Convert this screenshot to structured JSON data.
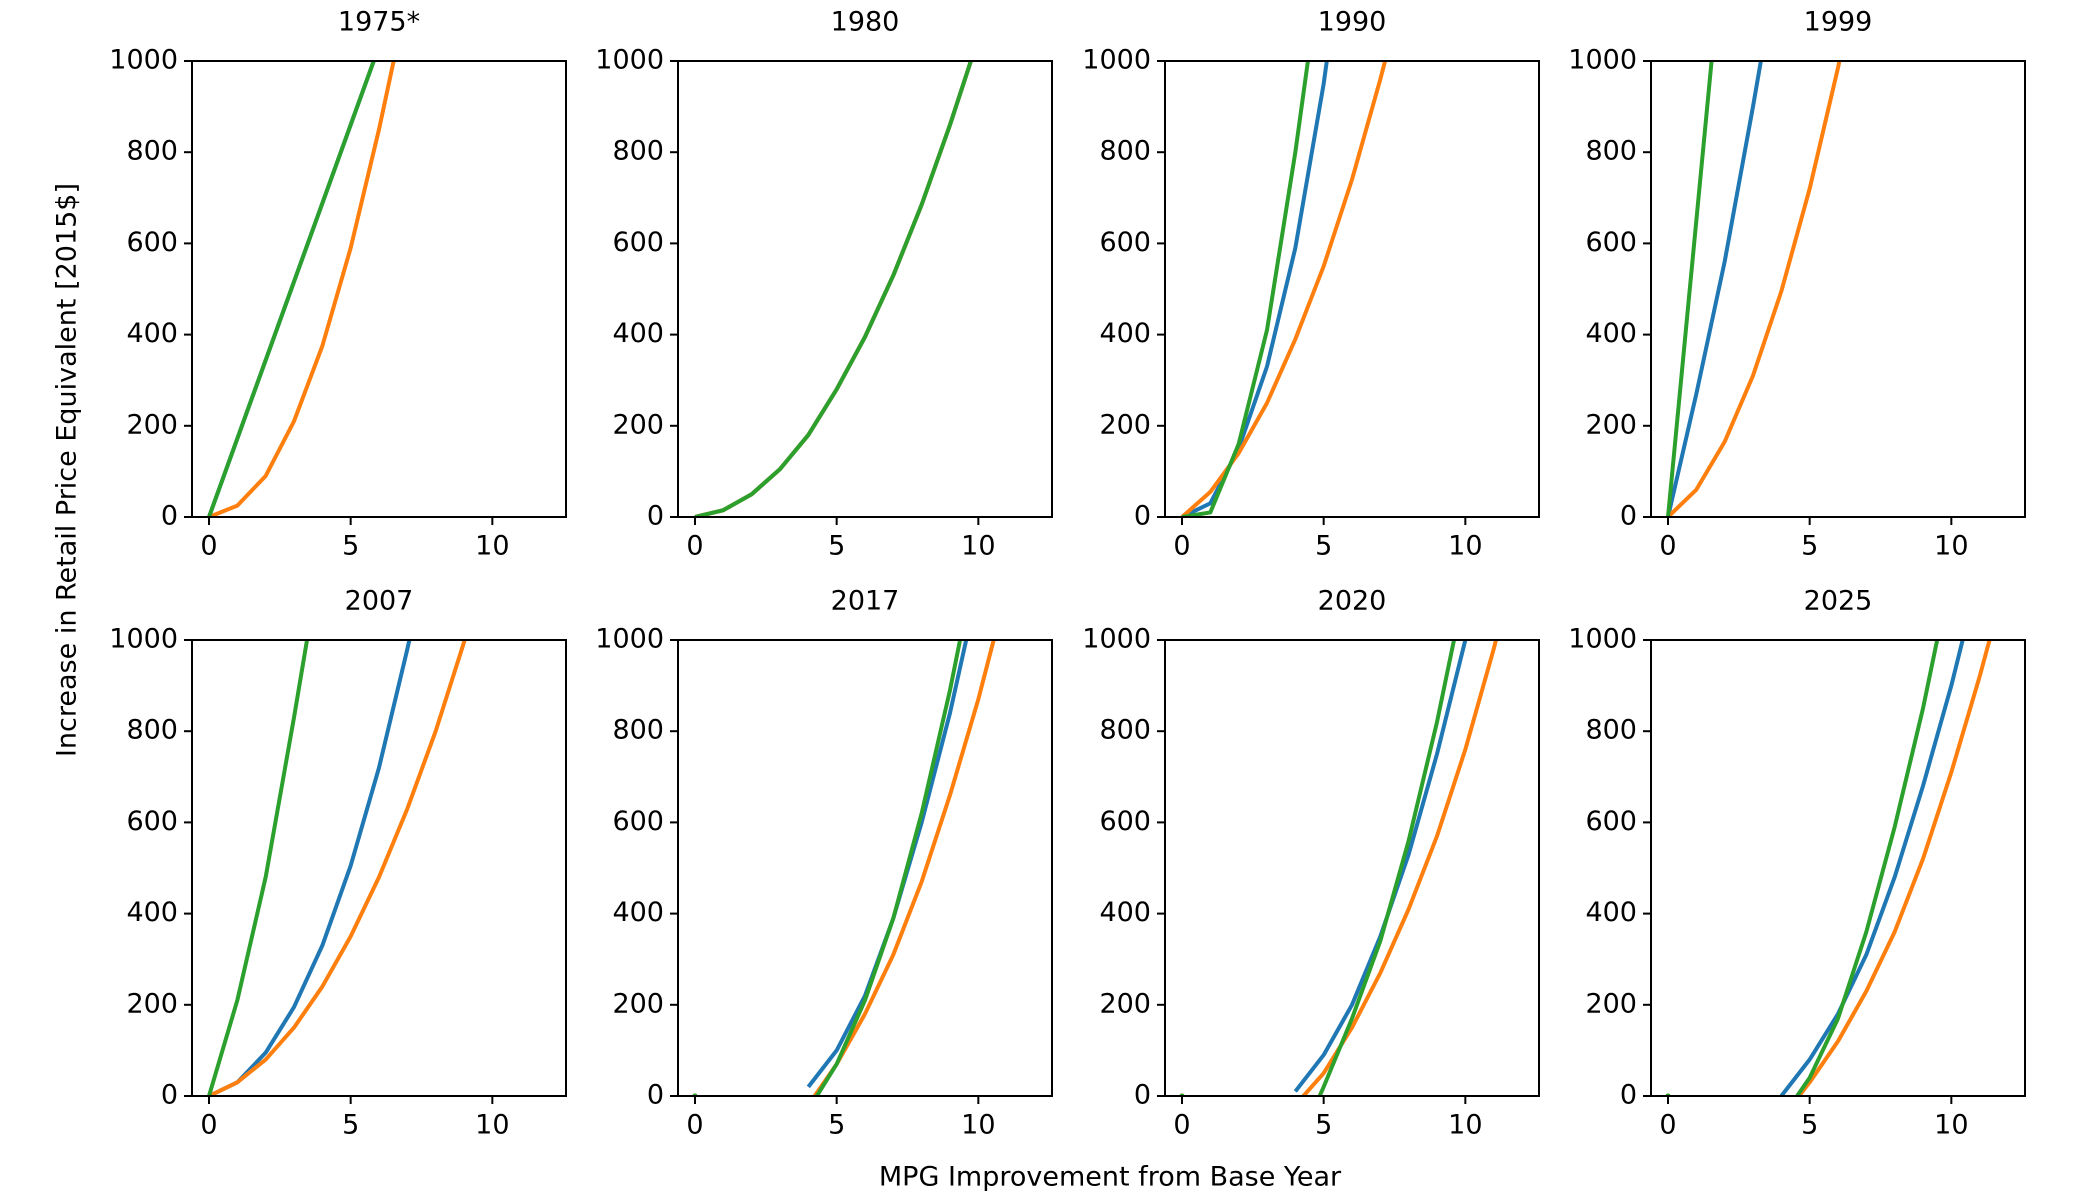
{
  "figure": {
    "ylabel": "Increase in Retail Price Equivalent [2015$]",
    "xlabel": "MPG Improvement from Base Year"
  },
  "chart_data": [
    {
      "type": "line",
      "title": "1975*",
      "x": [
        0,
        1,
        2,
        3,
        4,
        5,
        6,
        7
      ],
      "xlim": [
        -0.6,
        12.6
      ],
      "ylim": [
        0,
        1000
      ],
      "xticks": [
        0,
        5,
        10
      ],
      "yticks": [
        0,
        200,
        400,
        600,
        800,
        1000
      ],
      "series": [
        {
          "color": "#1f77b4",
          "values": [
            0,
            172,
            344,
            516,
            688,
            860,
            1032,
            null
          ]
        },
        {
          "color": "#ff7f0e",
          "values": [
            0,
            25,
            90,
            210,
            375,
            590,
            850,
            1140
          ]
        },
        {
          "color": "#2ca02c",
          "values": [
            0,
            172,
            344,
            516,
            688,
            860,
            1032,
            null
          ]
        }
      ]
    },
    {
      "type": "line",
      "title": "1980",
      "x": [
        0,
        1,
        2,
        3,
        4,
        5,
        6,
        7,
        8,
        9,
        10
      ],
      "xlim": [
        -0.6,
        12.6
      ],
      "ylim": [
        0,
        1000
      ],
      "xticks": [
        0,
        5,
        10
      ],
      "yticks": [
        0,
        200,
        400,
        600,
        800,
        1000
      ],
      "series": [
        {
          "color": "#1f77b4",
          "values": [
            0,
            15,
            50,
            105,
            180,
            280,
            395,
            530,
            685,
            860,
            1050
          ]
        },
        {
          "color": "#ff7f0e",
          "values": [
            0,
            15,
            50,
            105,
            180,
            280,
            395,
            530,
            685,
            860,
            1050
          ]
        },
        {
          "color": "#2ca02c",
          "values": [
            0,
            15,
            50,
            105,
            180,
            280,
            395,
            530,
            685,
            860,
            1050
          ]
        }
      ]
    },
    {
      "type": "line",
      "title": "1990",
      "x": [
        0,
        1,
        2,
        3,
        4,
        5,
        6,
        7,
        8
      ],
      "xlim": [
        -0.6,
        12.6
      ],
      "ylim": [
        0,
        1000
      ],
      "xticks": [
        0,
        5,
        10
      ],
      "yticks": [
        0,
        200,
        400,
        600,
        800,
        1000
      ],
      "series": [
        {
          "color": "#1f77b4",
          "values": [
            0,
            30,
            150,
            330,
            590,
            950,
            1400,
            null,
            null
          ]
        },
        {
          "color": "#ff7f0e",
          "values": [
            0,
            55,
            140,
            250,
            390,
            550,
            740,
            960,
            1200
          ]
        },
        {
          "color": "#2ca02c",
          "values": [
            0,
            10,
            160,
            410,
            800,
            1250,
            null,
            null,
            null
          ]
        }
      ]
    },
    {
      "type": "line",
      "title": "1999",
      "x": [
        0,
        1,
        2,
        3,
        4,
        5,
        6,
        7
      ],
      "xlim": [
        -0.6,
        12.6
      ],
      "ylim": [
        0,
        1000
      ],
      "xticks": [
        0,
        5,
        10
      ],
      "yticks": [
        0,
        200,
        400,
        600,
        800,
        1000
      ],
      "series": [
        {
          "color": "#1f77b4",
          "values": [
            0,
            270,
            560,
            900,
            1260,
            null,
            null,
            null
          ]
        },
        {
          "color": "#ff7f0e",
          "values": [
            0,
            60,
            165,
            310,
            495,
            720,
            985,
            1290
          ]
        },
        {
          "color": "#2ca02c",
          "values": [
            0,
            650,
            1300,
            null,
            null,
            null,
            null,
            null
          ]
        }
      ]
    },
    {
      "type": "line",
      "title": "2007",
      "x": [
        0,
        1,
        2,
        3,
        4,
        5,
        6,
        7,
        8,
        9,
        10
      ],
      "xlim": [
        -0.6,
        12.6
      ],
      "ylim": [
        0,
        1000
      ],
      "xticks": [
        0,
        5,
        10
      ],
      "yticks": [
        0,
        200,
        400,
        600,
        800,
        1000
      ],
      "series": [
        {
          "color": "#1f77b4",
          "values": [
            0,
            30,
            95,
            195,
            330,
            505,
            720,
            980,
            1260,
            null,
            null
          ]
        },
        {
          "color": "#ff7f0e",
          "values": [
            0,
            30,
            80,
            150,
            240,
            350,
            480,
            630,
            800,
            995,
            1210
          ]
        },
        {
          "color": "#2ca02c",
          "values": [
            0,
            210,
            480,
            830,
            1200,
            null,
            null,
            null,
            null,
            null,
            null
          ]
        }
      ]
    },
    {
      "type": "line",
      "title": "2017",
      "x": [
        0,
        1,
        2,
        3,
        4,
        5,
        6,
        7,
        8,
        9,
        10,
        11
      ],
      "xlim": [
        -0.6,
        12.6
      ],
      "ylim": [
        0,
        1000
      ],
      "xticks": [
        0,
        5,
        10
      ],
      "yticks": [
        0,
        200,
        400,
        600,
        800,
        1000
      ],
      "series": [
        {
          "color": "#1f77b4",
          "values": [
            0,
            null,
            null,
            null,
            20,
            100,
            220,
            390,
            600,
            840,
            1120,
            null
          ]
        },
        {
          "color": "#ff7f0e",
          "values": [
            0,
            null,
            null,
            null,
            -20,
            70,
            180,
            310,
            470,
            660,
            870,
            1110
          ]
        },
        {
          "color": "#2ca02c",
          "values": [
            0,
            null,
            null,
            null,
            -30,
            70,
            210,
            390,
            620,
            890,
            1200,
            null
          ]
        }
      ]
    },
    {
      "type": "line",
      "title": "2020",
      "x": [
        0,
        1,
        2,
        3,
        4,
        5,
        6,
        7,
        8,
        9,
        10,
        11,
        12
      ],
      "xlim": [
        -0.6,
        12.6
      ],
      "ylim": [
        0,
        1000
      ],
      "xticks": [
        0,
        5,
        10
      ],
      "yticks": [
        0,
        200,
        400,
        600,
        800,
        1000
      ],
      "series": [
        {
          "color": "#1f77b4",
          "values": [
            0,
            null,
            null,
            null,
            10,
            90,
            200,
            350,
            530,
            750,
            1000,
            1270,
            null
          ]
        },
        {
          "color": "#ff7f0e",
          "values": [
            0,
            null,
            null,
            null,
            -20,
            50,
            150,
            270,
            410,
            570,
            760,
            980,
            1220
          ]
        },
        {
          "color": "#2ca02c",
          "values": [
            0,
            null,
            null,
            null,
            -120,
            20,
            170,
            340,
            560,
            820,
            1120,
            null,
            null
          ]
        }
      ]
    },
    {
      "type": "line",
      "title": "2025",
      "x": [
        0,
        1,
        2,
        3,
        4,
        5,
        6,
        7,
        8,
        9,
        10,
        11,
        12
      ],
      "xlim": [
        -0.6,
        12.6
      ],
      "ylim": [
        0,
        1000
      ],
      "xticks": [
        0,
        5,
        10
      ],
      "yticks": [
        0,
        200,
        400,
        600,
        800,
        1000
      ],
      "series": [
        {
          "color": "#1f77b4",
          "values": [
            0,
            null,
            null,
            null,
            0,
            80,
            180,
            310,
            480,
            680,
            900,
            1150,
            null
          ]
        },
        {
          "color": "#ff7f0e",
          "values": [
            0,
            null,
            null,
            null,
            -50,
            30,
            120,
            230,
            360,
            520,
            710,
            920,
            1150
          ]
        },
        {
          "color": "#2ca02c",
          "values": [
            0,
            null,
            null,
            null,
            -50,
            40,
            170,
            360,
            590,
            850,
            1150,
            null,
            null
          ]
        }
      ]
    }
  ]
}
